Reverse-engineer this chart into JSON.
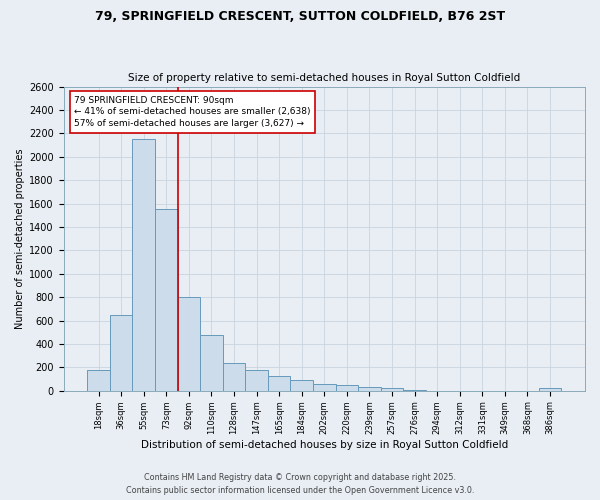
{
  "title": "79, SPRINGFIELD CRESCENT, SUTTON COLDFIELD, B76 2ST",
  "subtitle": "Size of property relative to semi-detached houses in Royal Sutton Coldfield",
  "xlabel": "Distribution of semi-detached houses by size in Royal Sutton Coldfield",
  "ylabel": "Number of semi-detached properties",
  "categories": [
    "18sqm",
    "36sqm",
    "55sqm",
    "73sqm",
    "92sqm",
    "110sqm",
    "128sqm",
    "147sqm",
    "165sqm",
    "184sqm",
    "202sqm",
    "220sqm",
    "239sqm",
    "257sqm",
    "276sqm",
    "294sqm",
    "312sqm",
    "331sqm",
    "349sqm",
    "368sqm",
    "386sqm"
  ],
  "values": [
    175,
    650,
    2150,
    1550,
    800,
    475,
    240,
    175,
    130,
    90,
    60,
    45,
    30,
    20,
    10,
    0,
    0,
    0,
    0,
    0,
    20
  ],
  "bar_color": "#cddceb",
  "bar_edge_color": "#6699bb",
  "reference_line_index": 4,
  "reference_line_color": "#cc0000",
  "annotation_text": "79 SPRINGFIELD CRESCENT: 90sqm\n← 41% of semi-detached houses are smaller (2,638)\n57% of semi-detached houses are larger (3,627) →",
  "annotation_box_color": "#ffffff",
  "annotation_box_edge_color": "#cc0000",
  "ylim": [
    0,
    2600
  ],
  "yticks": [
    0,
    200,
    400,
    600,
    800,
    1000,
    1200,
    1400,
    1600,
    1800,
    2000,
    2200,
    2400,
    2600
  ],
  "grid_color": "#c8d4e0",
  "background_color": "#e8eef4",
  "footer_line1": "Contains HM Land Registry data © Crown copyright and database right 2025.",
  "footer_line2": "Contains public sector information licensed under the Open Government Licence v3.0."
}
